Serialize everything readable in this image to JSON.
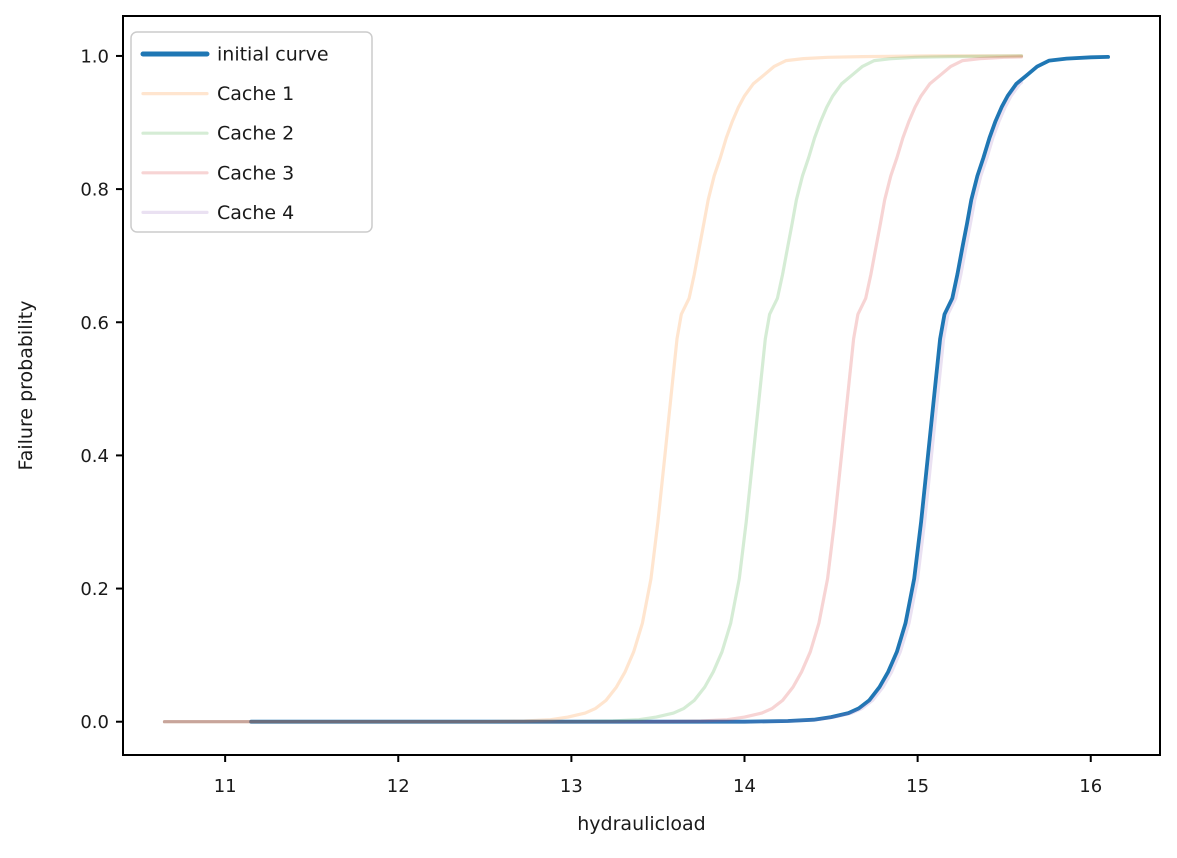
{
  "window": {
    "background": "#ffffff"
  },
  "chart_data": {
    "type": "line",
    "title": "",
    "xlabel": "hydraulicload",
    "ylabel": "Failure probability",
    "xlim": [
      10.41,
      16.4
    ],
    "ylim": [
      -0.05,
      1.06
    ],
    "x_ticks": [
      11,
      12,
      13,
      14,
      15,
      16
    ],
    "x_tick_labels": [
      "11",
      "12",
      "13",
      "14",
      "15",
      "16"
    ],
    "y_ticks": [
      0.0,
      0.2,
      0.4,
      0.6,
      0.8,
      1.0
    ],
    "y_tick_labels": [
      "0.0",
      "0.2",
      "0.4",
      "0.6",
      "0.8",
      "1.0"
    ],
    "grid": false,
    "legend_position": "upper left",
    "axis_color": "#000000",
    "text_color": "#1a1a1a",
    "legend_border_color": "#cccccc",
    "base_sigmoid_shape": [
      [
        -5.0,
        0.0
      ],
      [
        -1.1,
        0.0
      ],
      [
        -0.85,
        0.001
      ],
      [
        -0.7,
        0.003
      ],
      [
        -0.6,
        0.007
      ],
      [
        -0.5,
        0.013
      ],
      [
        -0.44,
        0.02
      ],
      [
        -0.38,
        0.032
      ],
      [
        -0.32,
        0.052
      ],
      [
        -0.27,
        0.075
      ],
      [
        -0.22,
        0.105
      ],
      [
        -0.17,
        0.148
      ],
      [
        -0.12,
        0.215
      ],
      [
        -0.08,
        0.3
      ],
      [
        -0.04,
        0.4
      ],
      [
        0.0,
        0.5
      ],
      [
        0.03,
        0.575
      ],
      [
        0.055,
        0.612
      ],
      [
        0.1,
        0.636
      ],
      [
        0.13,
        0.672
      ],
      [
        0.16,
        0.714
      ],
      [
        0.185,
        0.748
      ],
      [
        0.21,
        0.784
      ],
      [
        0.245,
        0.82
      ],
      [
        0.28,
        0.847
      ],
      [
        0.315,
        0.877
      ],
      [
        0.35,
        0.902
      ],
      [
        0.385,
        0.923
      ],
      [
        0.42,
        0.94
      ],
      [
        0.47,
        0.958
      ],
      [
        0.53,
        0.971
      ],
      [
        0.59,
        0.984
      ],
      [
        0.66,
        0.993
      ],
      [
        0.76,
        0.996
      ],
      [
        0.9,
        0.998
      ],
      [
        1.1,
        0.999
      ],
      [
        1.5,
        1.0
      ],
      [
        2.6,
        1.0
      ]
    ],
    "series": [
      {
        "name": "initial curve",
        "color": "#1f77b4",
        "opacity": 1.0,
        "line_width": 3.8,
        "midpoint": 15.1,
        "x_start": 11.15,
        "x_end": 16.1
      },
      {
        "name": "Cache 1",
        "color": "#ff7f0e",
        "opacity": 0.2,
        "line_width": 3.2,
        "midpoint": 13.58,
        "x_start": 10.65,
        "x_end": 15.6
      },
      {
        "name": "Cache 2",
        "color": "#2ca02c",
        "opacity": 0.2,
        "line_width": 3.2,
        "midpoint": 14.09,
        "x_start": 10.65,
        "x_end": 15.6
      },
      {
        "name": "Cache 3",
        "color": "#d62728",
        "opacity": 0.2,
        "line_width": 3.2,
        "midpoint": 14.6,
        "x_start": 10.65,
        "x_end": 15.6
      },
      {
        "name": "Cache 4",
        "color": "#9467bd",
        "opacity": 0.2,
        "line_width": 3.2,
        "midpoint": 15.12,
        "x_start": 10.65,
        "x_end": 15.6
      }
    ]
  }
}
